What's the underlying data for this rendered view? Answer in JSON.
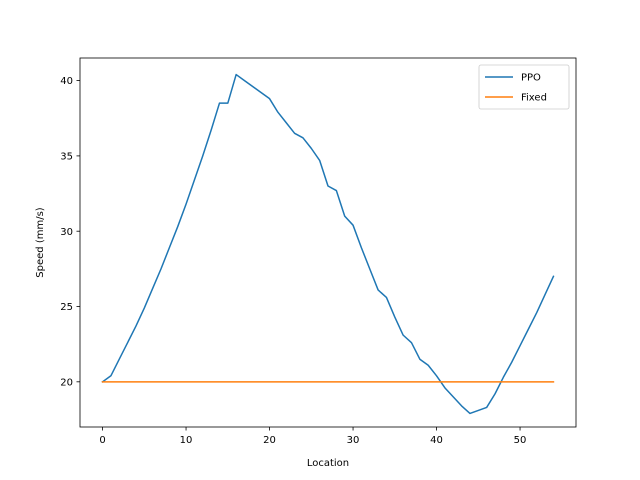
{
  "chart_data": {
    "type": "line",
    "xlabel": "Location",
    "ylabel": "Speed (mm/s)",
    "xlim": [
      -2.7,
      56.7
    ],
    "ylim": [
      17.0,
      41.5
    ],
    "x_ticks": [
      0,
      10,
      20,
      30,
      40,
      50
    ],
    "y_ticks": [
      20,
      25,
      30,
      35,
      40
    ],
    "grid": false,
    "legend_position": "top-right",
    "series": [
      {
        "name": "PPO",
        "color": "#1f77b4",
        "x": [
          0,
          1,
          2,
          3,
          4,
          5,
          6,
          7,
          8,
          9,
          10,
          11,
          12,
          13,
          14,
          15,
          16,
          17,
          18,
          19,
          20,
          21,
          22,
          23,
          24,
          25,
          26,
          27,
          28,
          29,
          30,
          31,
          32,
          33,
          34,
          35,
          36,
          37,
          38,
          39,
          40,
          41,
          42,
          43,
          44,
          45,
          46,
          47,
          48,
          49,
          50,
          51,
          52,
          53,
          54
        ],
        "y": [
          20.0,
          20.4,
          21.5,
          22.6,
          23.7,
          24.9,
          26.2,
          27.5,
          28.9,
          30.3,
          31.8,
          33.4,
          35.0,
          36.7,
          38.5,
          38.5,
          40.4,
          40.0,
          39.6,
          39.2,
          38.8,
          37.9,
          37.2,
          36.5,
          36.2,
          35.5,
          34.7,
          33.0,
          32.7,
          31.0,
          30.4,
          28.9,
          27.5,
          26.1,
          25.6,
          24.3,
          23.1,
          22.6,
          21.5,
          21.1,
          20.4,
          19.6,
          19.0,
          18.4,
          17.9,
          18.1,
          18.3,
          19.2,
          20.3,
          21.3,
          22.4,
          23.5,
          24.6,
          25.8,
          27.0
        ]
      },
      {
        "name": "Fixed",
        "color": "#ff7f0e",
        "x": [
          0,
          54
        ],
        "y": [
          20.0,
          20.0
        ]
      }
    ]
  }
}
